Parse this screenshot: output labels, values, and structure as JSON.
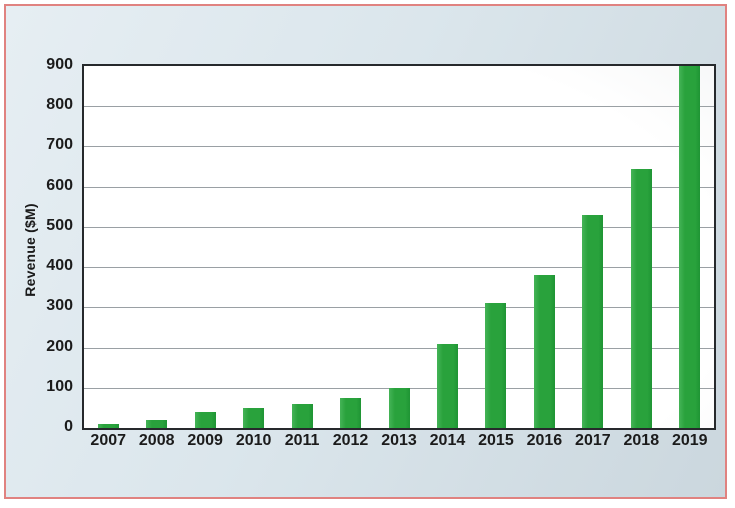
{
  "chart_data": {
    "type": "bar",
    "title": "",
    "xlabel": "",
    "ylabel": "Revenue ($M)",
    "categories": [
      "2007",
      "2008",
      "2009",
      "2010",
      "2011",
      "2012",
      "2013",
      "2014",
      "2015",
      "2016",
      "2017",
      "2018",
      "2019"
    ],
    "values": [
      10,
      20,
      40,
      50,
      60,
      75,
      100,
      210,
      310,
      380,
      530,
      645,
      900
    ],
    "ylim": [
      0,
      900
    ],
    "yticks": [
      0,
      100,
      200,
      300,
      400,
      500,
      600,
      700,
      800,
      900
    ],
    "grid": true,
    "legend_position": "none",
    "bar_color": "#29a23c"
  },
  "colors": {
    "panel_border": "#e08280",
    "panel_bg": "#dbe6ec",
    "plot_border": "#26292c",
    "gridline": "#9aa0a4",
    "bar": "#29a23c",
    "text": "#1b1b1b",
    "plot_bg": "#ffffff"
  }
}
